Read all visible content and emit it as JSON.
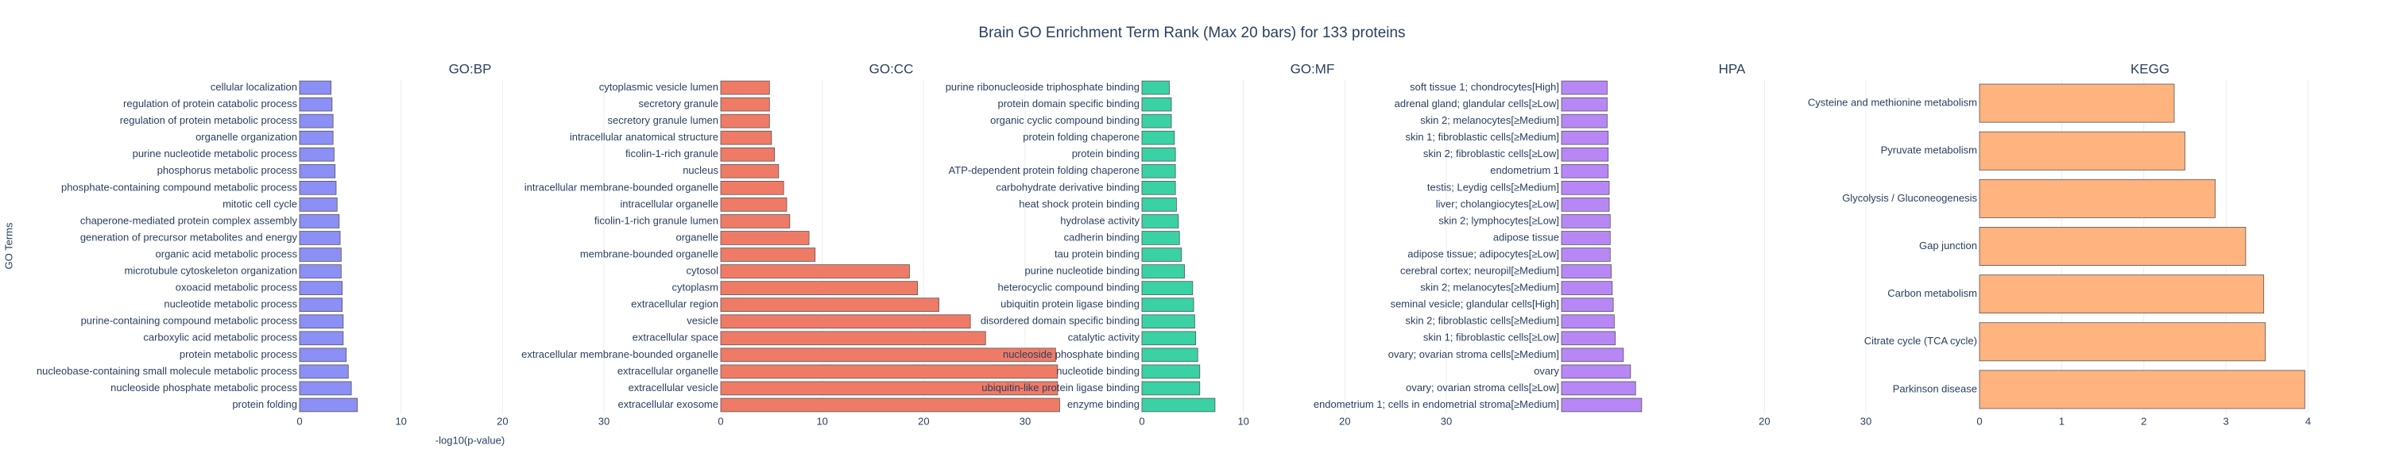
{
  "title": "Brain GO Enrichment Term Rank (Max 20 bars) for 133 proteins",
  "chart_data": [
    {
      "type": "barh",
      "title": "GO:BP",
      "xlabel": "-log10(p-value)",
      "ylabel": "GO Terms",
      "color": "#8c8ff5",
      "grid": true,
      "xlim": [
        0,
        33.6
      ],
      "xticks": [
        0,
        10,
        20,
        30
      ],
      "categories": [
        "cellular localization",
        "regulation of protein catabolic process",
        "regulation of protein metabolic process",
        "organelle organization",
        "purine nucleotide metabolic process",
        "phosphorus metabolic process",
        "phosphate-containing compound metabolic process",
        "mitotic cell cycle",
        "chaperone-mediated protein complex assembly",
        "generation of precursor metabolites and energy",
        "organic acid metabolic process",
        "microtubule cytoskeleton organization",
        "oxoacid metabolic process",
        "nucleotide metabolic process",
        "purine-containing compound metabolic process",
        "carboxylic acid metabolic process",
        "protein metabolic process",
        "nucleobase-containing small molecule metabolic process",
        "nucleoside phosphate metabolic process",
        "protein folding"
      ],
      "values": [
        3.1,
        3.2,
        3.3,
        3.3,
        3.4,
        3.5,
        3.6,
        3.7,
        3.9,
        4.0,
        4.1,
        4.1,
        4.2,
        4.2,
        4.3,
        4.3,
        4.6,
        4.8,
        5.1,
        5.7
      ]
    },
    {
      "type": "barh",
      "title": "GO:CC",
      "color": "#ef7b67",
      "grid": true,
      "xlim": [
        0,
        33.6
      ],
      "xticks": [
        0,
        10,
        20,
        30
      ],
      "categories": [
        "cytoplasmic vesicle lumen",
        "secretory granule",
        "secretory granule lumen",
        "intracellular anatomical structure",
        "ficolin-1-rich granule",
        "nucleus",
        "intracellular membrane-bounded organelle",
        "intracellular organelle",
        "ficolin-1-rich granule lumen",
        "organelle",
        "membrane-bounded organelle",
        "cytosol",
        "cytoplasm",
        "extracellular region",
        "vesicle",
        "extracellular space",
        "extracellular membrane-bounded organelle",
        "extracellular organelle",
        "extracellular vesicle",
        "extracellular exosome"
      ],
      "values": [
        4.8,
        4.8,
        4.8,
        5.0,
        5.3,
        5.7,
        6.2,
        6.5,
        6.8,
        8.7,
        9.3,
        18.6,
        19.4,
        21.5,
        24.6,
        26.1,
        33.0,
        33.2,
        33.2,
        33.4
      ]
    },
    {
      "type": "barh",
      "title": "GO:MF",
      "color": "#3ad1a5",
      "grid": true,
      "xlim": [
        0,
        33.6
      ],
      "xticks": [
        0,
        10,
        20,
        30
      ],
      "categories": [
        "purine ribonucleoside triphosphate binding",
        "protein domain specific binding",
        "organic cyclic compound binding",
        "protein folding chaperone",
        "protein binding",
        "ATP-dependent protein folding chaperone",
        "carbohydrate derivative binding",
        "heat shock protein binding",
        "hydrolase activity",
        "cadherin binding",
        "tau protein binding",
        "purine nucleotide binding",
        "heterocyclic compound binding",
        "ubiquitin protein ligase binding",
        "disordered domain specific binding",
        "catalytic activity",
        "nucleoside phosphate binding",
        "nucleotide binding",
        "ubiquitin-like protein ligase binding",
        "enzyme binding"
      ],
      "values": [
        2.7,
        2.9,
        2.9,
        3.2,
        3.3,
        3.3,
        3.3,
        3.4,
        3.6,
        3.7,
        3.9,
        4.2,
        5.0,
        5.1,
        5.2,
        5.3,
        5.5,
        5.7,
        5.7,
        7.2
      ]
    },
    {
      "type": "barh",
      "title": "HPA",
      "color": "#b887f6",
      "grid": true,
      "xlim": [
        0,
        33.6
      ],
      "xticks": [
        20,
        30
      ],
      "categories": [
        "soft tissue 1; chondrocytes[High]",
        "adrenal gland; glandular cells[≥Low]",
        "skin 2; melanocytes[≥Medium]",
        "skin 1; fibroblastic cells[≥Medium]",
        "skin 2; fibroblastic cells[≥Low]",
        "endometrium 1",
        "testis; Leydig cells[≥Medium]",
        "liver; cholangiocytes[≥Low]",
        "skin 2; lymphocytes[≥Low]",
        "adipose tissue",
        "adipose tissue; adipocytes[≥Low]",
        "cerebral cortex; neuropil[≥Medium]",
        "skin 2; melanocytes[≥Medium]",
        "seminal vesicle; glandular cells[High]",
        "skin 2; fibroblastic cells[≥Medium]",
        "skin 1; fibroblastic cells[≥Low]",
        "ovary; ovarian stroma cells[≥Medium]",
        "ovary",
        "ovary; ovarian stroma cells[≥Low]",
        "endometrium 1; cells in endometrial stroma[≥Medium]"
      ],
      "values": [
        4.5,
        4.5,
        4.5,
        4.6,
        4.6,
        4.6,
        4.7,
        4.7,
        4.8,
        4.8,
        4.8,
        4.9,
        5.0,
        5.1,
        5.2,
        5.3,
        6.1,
        6.8,
        7.3,
        7.9
      ]
    },
    {
      "type": "barh",
      "title": "KEGG",
      "color": "#ffb37e",
      "grid": true,
      "xlim": [
        0,
        4.15
      ],
      "xticks": [
        0,
        1,
        2,
        3,
        4
      ],
      "categories": [
        "Cysteine and methionine metabolism",
        "Pyruvate metabolism",
        "Glycolysis / Gluconeogenesis",
        "Gap junction",
        "Carbon metabolism",
        "Citrate cycle (TCA cycle)",
        "Parkinson disease"
      ],
      "values": [
        2.37,
        2.5,
        2.87,
        3.24,
        3.46,
        3.48,
        3.96
      ]
    }
  ]
}
